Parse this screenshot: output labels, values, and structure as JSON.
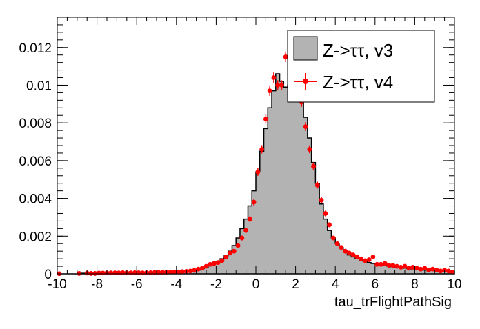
{
  "chart_data": {
    "type": "histogram",
    "title": "",
    "xlabel": "tau_trFlightPathSig",
    "ylabel": "",
    "xlim": [
      -10,
      10
    ],
    "ylim": [
      0,
      0.0136
    ],
    "x_ticks": [
      -10,
      -8,
      -6,
      -4,
      -2,
      0,
      2,
      4,
      6,
      8,
      10
    ],
    "x_tick_labels": [
      "-10",
      "-8",
      "-6",
      "-4",
      "-2",
      "0",
      "2",
      "4",
      "6",
      "8",
      "10"
    ],
    "y_ticks": [
      0,
      0.002,
      0.004,
      0.006,
      0.008,
      0.01,
      0.012
    ],
    "y_tick_labels": [
      "0",
      "0.002",
      "0.004",
      "0.006",
      "0.008",
      "0.01",
      "0.012"
    ],
    "bin_width": 0.2,
    "bin_start": -10,
    "legend": {
      "position": "top-right",
      "entries": [
        {
          "label": "Z->ττ, v3",
          "style": "filled-histogram"
        },
        {
          "label": "Z->ττ, v4",
          "style": "marker-with-errors"
        }
      ]
    },
    "series": [
      {
        "name": "Z->ττ, v3",
        "kind": "histogram",
        "fill_color": "#b3b3b3",
        "line_color": "#000000",
        "values": [
          0,
          0,
          0,
          0,
          0,
          3e-05,
          3e-05,
          0,
          3e-05,
          3e-05,
          3e-05,
          3e-05,
          3e-05,
          3e-05,
          3e-05,
          5e-05,
          5e-05,
          5e-05,
          5e-05,
          5e-05,
          5e-05,
          5e-05,
          5e-05,
          5e-05,
          5e-05,
          5e-05,
          5e-05,
          5e-05,
          8e-05,
          8e-05,
          8e-05,
          0.0001,
          0.0001,
          0.00013,
          0.00015,
          0.0002,
          0.00028,
          0.00033,
          0.00045,
          0.00055,
          0.00065,
          0.0008,
          0.00095,
          0.0012,
          0.0015,
          0.0019,
          0.0024,
          0.0029,
          0.0036,
          0.0044,
          0.0054,
          0.0065,
          0.0077,
          0.0088,
          0.0097,
          0.0106,
          0.0102,
          0.0099,
          0.01,
          0.0107,
          0.0099,
          0.0092,
          0.0083,
          0.0072,
          0.0059,
          0.0048,
          0.0037,
          0.0029,
          0.0023,
          0.0019,
          0.0016,
          0.0014,
          0.0012,
          0.001,
          0.0009,
          0.0008,
          0.0007,
          0.00065,
          0.0006,
          0.00055,
          0.0005,
          0.00047,
          0.00044,
          0.00041,
          0.00038,
          0.00035,
          0.00032,
          0.0003,
          0.00028,
          0.00026,
          0.00024,
          0.00022,
          0.0002,
          0.00019,
          0.00018,
          0.00017,
          0.00016,
          0.00015,
          0.00014,
          0.00013
        ]
      },
      {
        "name": "Z->ττ, v4",
        "kind": "points-with-errors",
        "color": "#ff0000",
        "values": [
          1e-05,
          0,
          0,
          0,
          0,
          2e-05,
          0,
          4e-05,
          2e-05,
          2e-05,
          4e-05,
          4e-05,
          5e-05,
          5e-05,
          5e-05,
          5e-05,
          6e-05,
          6e-05,
          5e-05,
          6e-05,
          6e-05,
          5e-05,
          6e-05,
          6e-05,
          7e-05,
          8e-05,
          8e-05,
          9e-05,
          0.0001,
          0.0001,
          0.0001,
          0.00012,
          0.00013,
          0.00015,
          0.00018,
          0.00025,
          0.0003,
          0.0004,
          0.0005,
          0.00055,
          0.0006,
          0.0007,
          0.0009,
          0.0011,
          0.0012,
          0.0015,
          0.0019,
          0.0023,
          0.0029,
          0.0038,
          0.0054,
          0.0066,
          0.0082,
          0.0097,
          0.0104,
          0.01,
          0.01,
          0.0115,
          0.0113,
          0.0105,
          0.0101,
          0.0091,
          0.0078,
          0.0066,
          0.0057,
          0.0047,
          0.0039,
          0.0032,
          0.0026,
          0.0019,
          0.0016,
          0.0014,
          0.0012,
          0.0011,
          0.001,
          0.0009,
          0.0008,
          0.0007,
          0.00075,
          0.0009,
          0.0005,
          0.0005,
          0.00055,
          0.00045,
          0.00045,
          0.0004,
          0.00035,
          0.0004,
          0.0003,
          0.00035,
          0.0003,
          0.00025,
          0.0003,
          0.0002,
          0.00025,
          0.0002,
          0.00015,
          0.0002,
          0.00015,
          0.0001
        ],
        "errors": [
          2e-05,
          0,
          0,
          0,
          0,
          2e-05,
          0,
          3e-05,
          2e-05,
          2e-05,
          3e-05,
          3e-05,
          3e-05,
          3e-05,
          3e-05,
          3e-05,
          3e-05,
          3e-05,
          3e-05,
          3e-05,
          3e-05,
          3e-05,
          3e-05,
          3e-05,
          3e-05,
          3e-05,
          3e-05,
          3e-05,
          3e-05,
          3e-05,
          3e-05,
          4e-05,
          4e-05,
          4e-05,
          5e-05,
          5e-05,
          6e-05,
          6e-05,
          7e-05,
          7e-05,
          8e-05,
          8e-05,
          9e-05,
          0.0001,
          0.00011,
          0.00012,
          0.00013,
          0.00014,
          0.00016,
          0.00018,
          0.0002,
          0.00022,
          0.00024,
          0.00026,
          0.00027,
          0.00026,
          0.00026,
          0.00028,
          0.00028,
          0.00027,
          0.00026,
          0.00025,
          0.00023,
          0.00021,
          0.0002,
          0.00018,
          0.00016,
          0.00015,
          0.00013,
          0.00012,
          0.00011,
          0.0001,
          9e-05,
          9e-05,
          8e-05,
          8e-05,
          7e-05,
          7e-05,
          7e-05,
          7e-05,
          6e-05,
          6e-05,
          6e-05,
          6e-05,
          6e-05,
          5e-05,
          5e-05,
          5e-05,
          5e-05,
          5e-05,
          5e-05,
          4e-05,
          5e-05,
          4e-05,
          4e-05,
          4e-05,
          3e-05,
          4e-05,
          3e-05,
          3e-05
        ]
      }
    ]
  }
}
